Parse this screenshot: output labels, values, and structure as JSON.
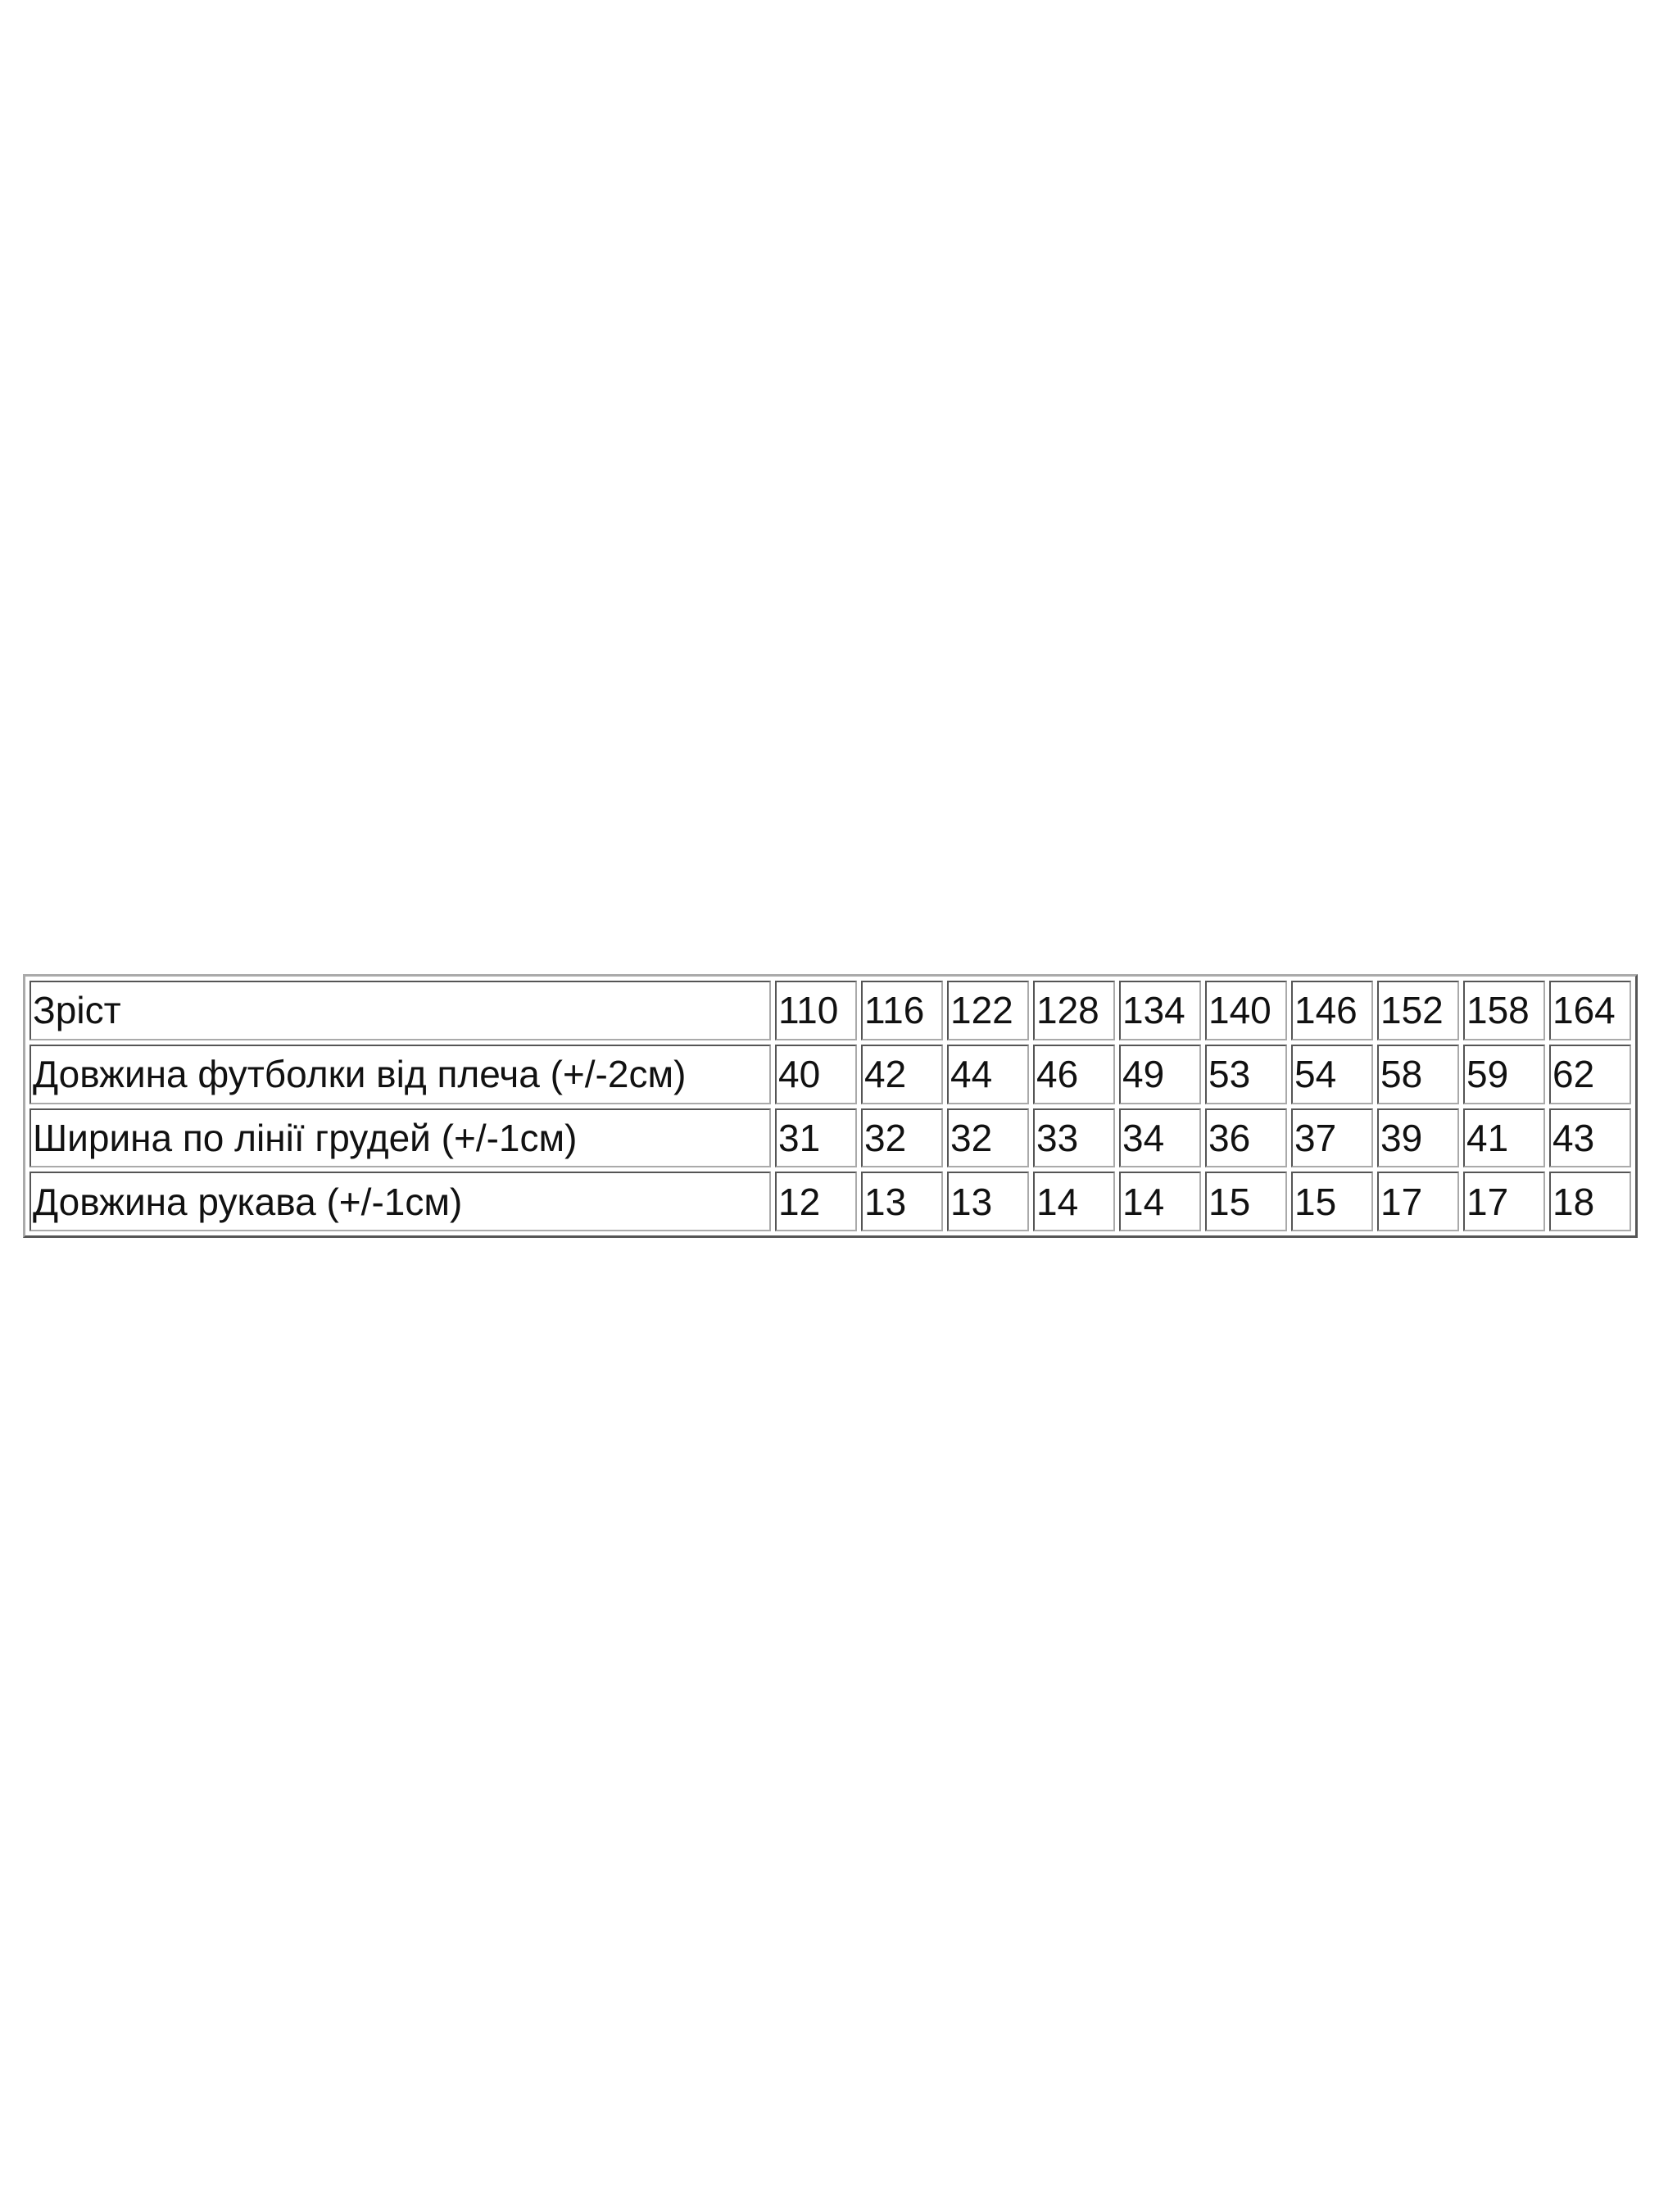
{
  "table": {
    "rows": [
      [
        "Зріст",
        110,
        116,
        122,
        128,
        134,
        140,
        146,
        152,
        158,
        164
      ],
      [
        "Довжина футболки від плеча (+/-2см)",
        40,
        42,
        44,
        46,
        49,
        53,
        54,
        58,
        59,
        62
      ],
      [
        "Ширина по лінії грудей (+/-1см)",
        31,
        32,
        32,
        33,
        34,
        36,
        37,
        39,
        41,
        43
      ],
      [
        "Довжина рукава (+/-1см)",
        12,
        13,
        13,
        14,
        14,
        15,
        15,
        17,
        17,
        18
      ]
    ]
  }
}
